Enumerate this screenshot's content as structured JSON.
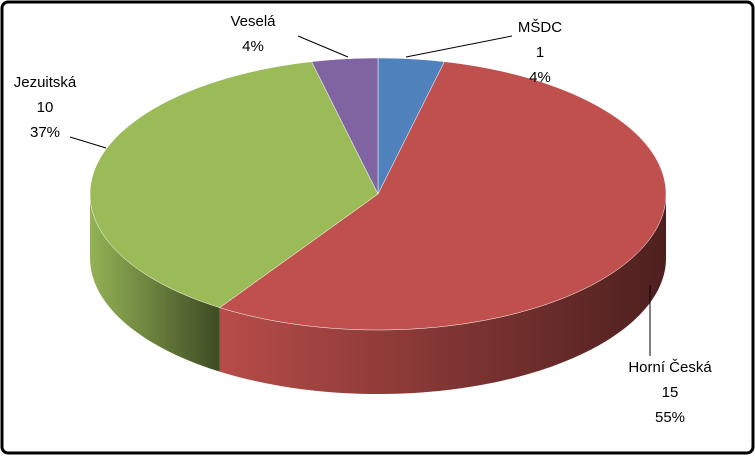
{
  "chart_data": {
    "type": "pie3d",
    "categories": [
      "MŠDC",
      "Horní Česká",
      "Jezuitská",
      "Veselá"
    ],
    "values": [
      1,
      15,
      10,
      1
    ],
    "show_value": [
      true,
      true,
      true,
      false
    ],
    "percent_labels": [
      "4%",
      "55%",
      "37%",
      "4%"
    ],
    "colors": [
      "#4f81bd",
      "#c0504d",
      "#9bbb59",
      "#8064a2"
    ]
  }
}
